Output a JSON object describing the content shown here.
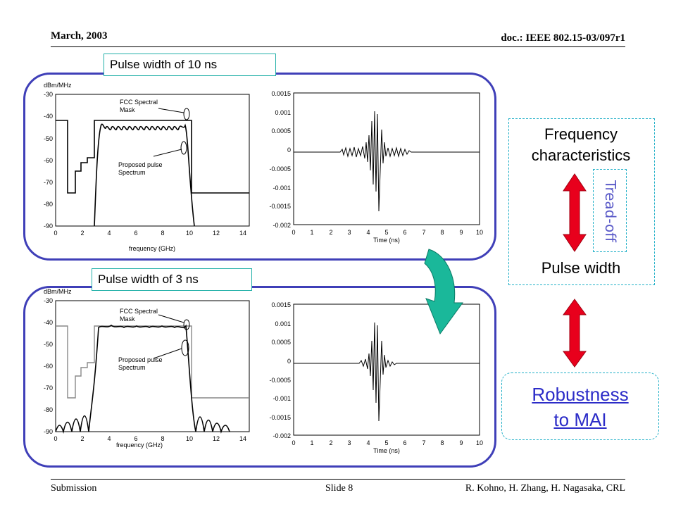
{
  "header": {
    "date": "March, 2003",
    "doc": "doc.: IEEE 802.15-03/097r1"
  },
  "footer": {
    "left": "Submission",
    "center": "Slide 8",
    "right": "R. Kohno, H. Zhang, H. Nagasaka, CRL"
  },
  "panels": [
    {
      "label": "Pulse width of 10 ns"
    },
    {
      "label": "Pulse width of 3 ns"
    }
  ],
  "spectrum_plot": {
    "ylabel": "dBm/MHz",
    "xlabel": "frequency (GHz)",
    "yticks": [
      "-30",
      "-40",
      "-50",
      "-60",
      "-70",
      "-80",
      "-90"
    ],
    "xticks": [
      "0",
      "2",
      "4",
      "6",
      "8",
      "10",
      "12",
      "14"
    ],
    "mask_label_1": "FCC Spectral",
    "mask_label_2": "Mask",
    "pulse_label_1": "Proposed pulse",
    "pulse_label_2": "Spectrum"
  },
  "time_plot": {
    "xlabel": "Time (ns)",
    "yticks": [
      "0.0015",
      "0.001",
      "0.0005",
      "0",
      "-0.0005",
      "-0.001",
      "-0.0015",
      "-0.002"
    ],
    "xticks": [
      "0",
      "1",
      "2",
      "3",
      "4",
      "5",
      "6",
      "7",
      "8",
      "9",
      "10"
    ]
  },
  "right": {
    "freq_line1": "Frequency",
    "freq_line2": "characteristics",
    "tradeoff": "Tread-off",
    "pulse_width": "Pulse width",
    "robust_line1": "Robustness",
    "robust_line2": "to MAI"
  },
  "colors": {
    "panel_border": "#3f3fb8",
    "arrow_red": "#e8001c",
    "curved_arrow": "#1ab89a",
    "link_blue": "#2c2cc8"
  }
}
